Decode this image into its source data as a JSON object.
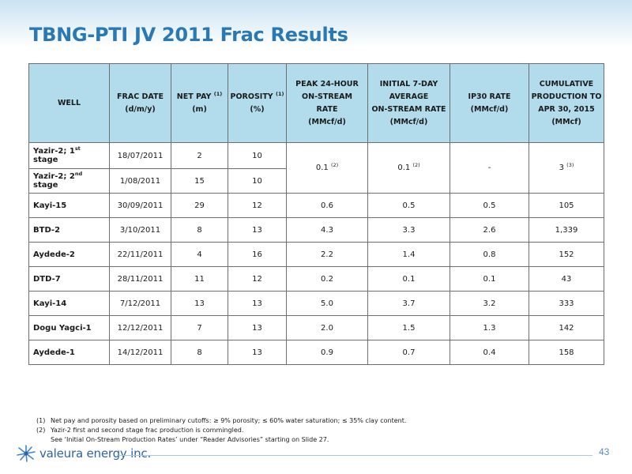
{
  "title": "TBNG-PTI JV 2011 Frac Results",
  "table": {
    "headers": {
      "well": "WELL",
      "frac_date": [
        "FRAC DATE",
        "(d/m/y)"
      ],
      "net_pay": [
        "NET PAY",
        "(1)",
        "(m)"
      ],
      "porosity": [
        "POROSITY",
        "(1)",
        "(%)"
      ],
      "peak": [
        "PEAK 24-HOUR",
        "ON-STREAM",
        "RATE",
        "(MMcf/d)"
      ],
      "initial": [
        "INITIAL 7-DAY",
        "AVERAGE",
        "ON-STREAM RATE",
        "(MMcf/d)"
      ],
      "ip30": [
        "IP30 RATE",
        "(MMcf/d)"
      ],
      "cumulative": [
        "CUMULATIVE",
        "PRODUCTION TO",
        "APR 30, 2015",
        "(MMcf)"
      ]
    },
    "merged": {
      "peak": "0.1",
      "peak_note": "(2)",
      "initial": "0.1",
      "initial_note": "(2)",
      "ip30": "-",
      "cumulative": "3",
      "cumulative_note": "(3)"
    },
    "rows": [
      {
        "well": "Yazir-2; 1",
        "well_sup": "st",
        "well_suffix": " stage",
        "date": "18/07/2011",
        "net_pay": "2",
        "porosity": "10"
      },
      {
        "well": "Yazir-2; 2",
        "well_sup": "nd",
        "well_suffix": " stage",
        "date": "1/08/2011",
        "net_pay": "15",
        "porosity": "10"
      },
      {
        "well": "Kayi-15",
        "date": "30/09/2011",
        "net_pay": "29",
        "porosity": "12",
        "peak": "0.6",
        "initial": "0.5",
        "ip30": "0.5",
        "cumulative": "105"
      },
      {
        "well": "BTD-2",
        "date": "3/10/2011",
        "net_pay": "8",
        "porosity": "13",
        "peak": "4.3",
        "initial": "3.3",
        "ip30": "2.6",
        "cumulative": "1,339"
      },
      {
        "well": "Aydede-2",
        "date": "22/11/2011",
        "net_pay": "4",
        "porosity": "16",
        "peak": "2.2",
        "initial": "1.4",
        "ip30": "0.8",
        "cumulative": "152"
      },
      {
        "well": "DTD-7",
        "date": "28/11/2011",
        "net_pay": "11",
        "porosity": "12",
        "peak": "0.2",
        "initial": "0.1",
        "ip30": "0.1",
        "cumulative": "43"
      },
      {
        "well": "Kayi-14",
        "date": "7/12/2011",
        "net_pay": "13",
        "porosity": "13",
        "peak": "5.0",
        "initial": "3.7",
        "ip30": "3.2",
        "cumulative": "333"
      },
      {
        "well": "Dogu Yagci-1",
        "date": "12/12/2011",
        "net_pay": "7",
        "porosity": "13",
        "peak": "2.0",
        "initial": "1.5",
        "ip30": "1.3",
        "cumulative": "142"
      },
      {
        "well": "Aydede-1",
        "date": "14/12/2011",
        "net_pay": "8",
        "porosity": "13",
        "peak": "0.9",
        "initial": "0.7",
        "ip30": "0.4",
        "cumulative": "158"
      }
    ]
  },
  "footnotes": [
    {
      "num": "(1)",
      "text": "Net pay and porosity based on preliminary cutoffs: ≥ 9% porosity; ≤ 60% water saturation; ≤ 35% clay content."
    },
    {
      "num": "(2)",
      "text": "Yazir-2 first and second stage frac production is commingled."
    },
    {
      "num": "",
      "text": "See ‘Initial On-Stream Production Rates’ under “Reader Advisories” starting on Slide 27."
    }
  ],
  "logo_text": "valeura energy inc.",
  "page_number": "43",
  "colors": {
    "title": "#2a78b4",
    "header_bg": "#b2dcec",
    "logo": "#2e63a6"
  }
}
